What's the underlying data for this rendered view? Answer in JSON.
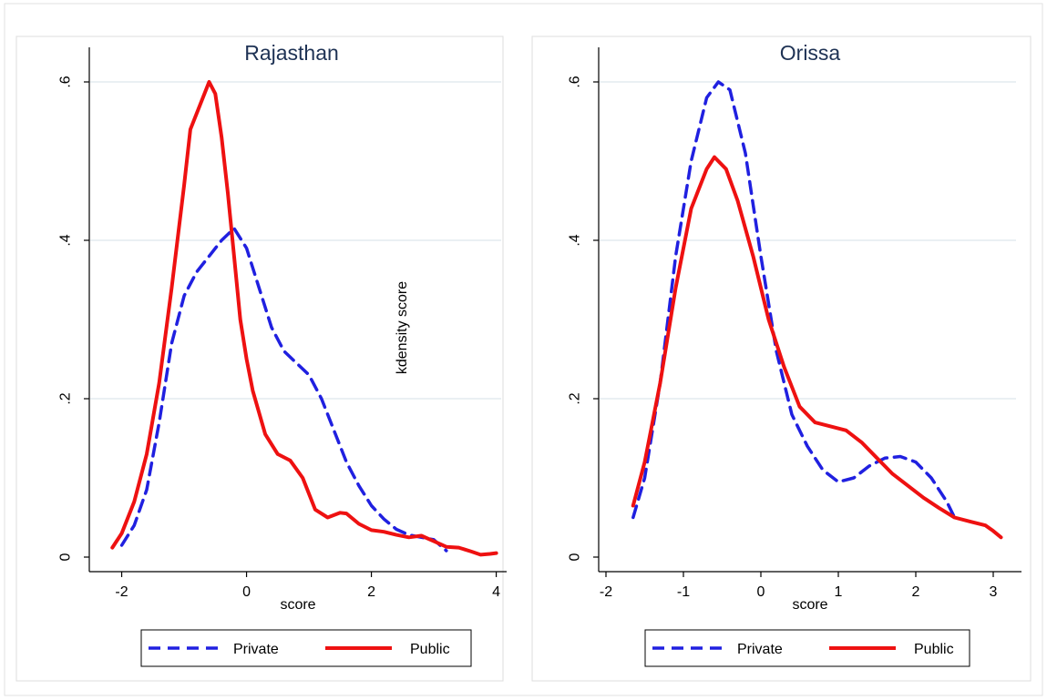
{
  "colors": {
    "private": "#2020e0",
    "public": "#ee1111",
    "grid": "#e3ecef",
    "panel_border": "#dddddd",
    "title": "#1e3254",
    "axis": "#000000"
  },
  "legend": {
    "private_label": "Private",
    "public_label": "Public"
  },
  "y_axis_label_note": "kdensity score",
  "chart_data": [
    {
      "type": "line",
      "title": "Rajasthan",
      "xlabel": "score",
      "ylabel": "",
      "xlim": [
        -2.3,
        4.05
      ],
      "ylim": [
        0,
        0.6
      ],
      "xticks": [
        -2,
        0,
        2,
        4
      ],
      "xtick_labels": [
        "-2",
        "0",
        "2",
        "4"
      ],
      "yticks": [
        0,
        0.2,
        0.4,
        0.6
      ],
      "ytick_labels": [
        "0",
        ".2",
        ".4",
        ".6"
      ],
      "grid": true,
      "legend_position": "bottom",
      "annotation": "kdensity score",
      "series": [
        {
          "name": "Private",
          "style": "dashed",
          "points": [
            [
              -2.0,
              0.015
            ],
            [
              -1.8,
              0.04
            ],
            [
              -1.6,
              0.085
            ],
            [
              -1.4,
              0.17
            ],
            [
              -1.2,
              0.27
            ],
            [
              -1.0,
              0.33
            ],
            [
              -0.8,
              0.36
            ],
            [
              -0.6,
              0.38
            ],
            [
              -0.4,
              0.4
            ],
            [
              -0.2,
              0.415
            ],
            [
              0.0,
              0.39
            ],
            [
              0.2,
              0.34
            ],
            [
              0.4,
              0.29
            ],
            [
              0.6,
              0.26
            ],
            [
              0.8,
              0.245
            ],
            [
              1.0,
              0.23
            ],
            [
              1.2,
              0.2
            ],
            [
              1.4,
              0.16
            ],
            [
              1.6,
              0.12
            ],
            [
              1.8,
              0.09
            ],
            [
              2.0,
              0.065
            ],
            [
              2.2,
              0.048
            ],
            [
              2.4,
              0.035
            ],
            [
              2.6,
              0.028
            ],
            [
              2.8,
              0.025
            ],
            [
              3.0,
              0.022
            ],
            [
              3.1,
              0.015
            ],
            [
              3.2,
              0.008
            ]
          ]
        },
        {
          "name": "Public",
          "style": "solid",
          "points": [
            [
              -2.15,
              0.012
            ],
            [
              -2.0,
              0.03
            ],
            [
              -1.8,
              0.07
            ],
            [
              -1.6,
              0.13
            ],
            [
              -1.4,
              0.22
            ],
            [
              -1.2,
              0.34
            ],
            [
              -1.0,
              0.47
            ],
            [
              -0.9,
              0.54
            ],
            [
              -0.75,
              0.57
            ],
            [
              -0.6,
              0.6
            ],
            [
              -0.5,
              0.585
            ],
            [
              -0.4,
              0.53
            ],
            [
              -0.3,
              0.46
            ],
            [
              -0.2,
              0.38
            ],
            [
              -0.1,
              0.3
            ],
            [
              0.0,
              0.25
            ],
            [
              0.1,
              0.21
            ],
            [
              0.3,
              0.155
            ],
            [
              0.5,
              0.13
            ],
            [
              0.7,
              0.122
            ],
            [
              0.9,
              0.1
            ],
            [
              1.1,
              0.06
            ],
            [
              1.3,
              0.05
            ],
            [
              1.5,
              0.056
            ],
            [
              1.6,
              0.055
            ],
            [
              1.8,
              0.042
            ],
            [
              2.0,
              0.034
            ],
            [
              2.2,
              0.032
            ],
            [
              2.4,
              0.028
            ],
            [
              2.6,
              0.025
            ],
            [
              2.8,
              0.027
            ],
            [
              3.0,
              0.02
            ],
            [
              3.2,
              0.013
            ],
            [
              3.4,
              0.012
            ],
            [
              3.6,
              0.007
            ],
            [
              3.75,
              0.003
            ],
            [
              3.9,
              0.004
            ],
            [
              4.0,
              0.005
            ]
          ]
        }
      ]
    },
    {
      "type": "line",
      "title": "Orissa",
      "xlabel": "score",
      "ylabel": "",
      "xlim": [
        -2.0,
        3.2
      ],
      "ylim": [
        0,
        0.6
      ],
      "xticks": [
        -2,
        -1,
        0,
        1,
        2,
        3
      ],
      "xtick_labels": [
        "-2",
        "-1",
        "0",
        "1",
        "2",
        "3"
      ],
      "yticks": [
        0,
        0.2,
        0.4,
        0.6
      ],
      "ytick_labels": [
        "0",
        ".2",
        ".4",
        ".6"
      ],
      "grid": true,
      "legend_position": "bottom",
      "series": [
        {
          "name": "Private",
          "style": "dashed",
          "points": [
            [
              -1.65,
              0.05
            ],
            [
              -1.5,
              0.1
            ],
            [
              -1.3,
              0.22
            ],
            [
              -1.1,
              0.38
            ],
            [
              -0.9,
              0.5
            ],
            [
              -0.7,
              0.58
            ],
            [
              -0.55,
              0.6
            ],
            [
              -0.4,
              0.59
            ],
            [
              -0.2,
              0.51
            ],
            [
              0.0,
              0.38
            ],
            [
              0.2,
              0.26
            ],
            [
              0.4,
              0.18
            ],
            [
              0.6,
              0.14
            ],
            [
              0.8,
              0.11
            ],
            [
              1.0,
              0.095
            ],
            [
              1.2,
              0.1
            ],
            [
              1.4,
              0.115
            ],
            [
              1.6,
              0.125
            ],
            [
              1.8,
              0.127
            ],
            [
              2.0,
              0.12
            ],
            [
              2.2,
              0.1
            ],
            [
              2.4,
              0.07
            ],
            [
              2.5,
              0.05
            ]
          ]
        },
        {
          "name": "Public",
          "style": "solid",
          "points": [
            [
              -1.65,
              0.065
            ],
            [
              -1.5,
              0.12
            ],
            [
              -1.3,
              0.22
            ],
            [
              -1.1,
              0.34
            ],
            [
              -0.9,
              0.44
            ],
            [
              -0.7,
              0.49
            ],
            [
              -0.6,
              0.505
            ],
            [
              -0.45,
              0.49
            ],
            [
              -0.3,
              0.45
            ],
            [
              -0.1,
              0.38
            ],
            [
              0.1,
              0.3
            ],
            [
              0.3,
              0.24
            ],
            [
              0.5,
              0.19
            ],
            [
              0.7,
              0.17
            ],
            [
              0.9,
              0.165
            ],
            [
              1.1,
              0.16
            ],
            [
              1.3,
              0.145
            ],
            [
              1.5,
              0.125
            ],
            [
              1.7,
              0.105
            ],
            [
              1.9,
              0.09
            ],
            [
              2.1,
              0.075
            ],
            [
              2.3,
              0.062
            ],
            [
              2.5,
              0.05
            ],
            [
              2.7,
              0.045
            ],
            [
              2.9,
              0.04
            ],
            [
              3.0,
              0.033
            ],
            [
              3.1,
              0.025
            ]
          ]
        }
      ]
    }
  ]
}
